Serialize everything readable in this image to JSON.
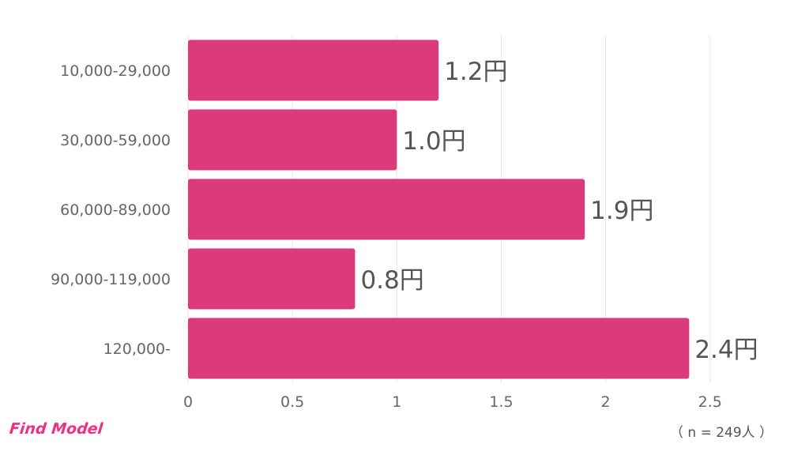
{
  "chart_data": {
    "type": "bar",
    "orientation": "horizontal",
    "categories": [
      "10,000-29,000",
      "30,000-59,000",
      "60,000-89,000",
      "90,000-119,000",
      "120,000-"
    ],
    "values": [
      1.2,
      1.0,
      1.9,
      0.8,
      2.4
    ],
    "value_labels": [
      "1.2円",
      "1.0円",
      "1.9円",
      "0.8円",
      "2.4円"
    ],
    "x_ticks": [
      "0",
      "0.5",
      "1",
      "1.5",
      "2",
      "2.5"
    ],
    "x_tick_values": [
      0,
      0.5,
      1,
      1.5,
      2,
      2.5
    ],
    "xlim": [
      0,
      2.5
    ],
    "grid": true,
    "colors": {
      "bar": "#db3a7d",
      "grid": "#e6e6e6",
      "tick_text": "#666666",
      "value_text": "#555555"
    }
  },
  "footer": {
    "logo": "Find Model",
    "logo_color": "#ef2f86",
    "sample_note": "（ n = 249人 ）"
  }
}
